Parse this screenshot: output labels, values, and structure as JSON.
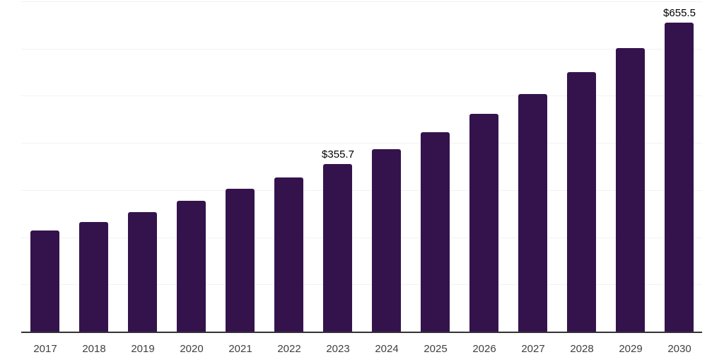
{
  "chart_data": {
    "type": "bar",
    "categories": [
      "2017",
      "2018",
      "2019",
      "2020",
      "2021",
      "2022",
      "2023",
      "2024",
      "2025",
      "2026",
      "2027",
      "2028",
      "2029",
      "2030"
    ],
    "values": [
      214,
      232,
      254,
      278,
      303,
      327,
      355.7,
      386,
      423,
      461,
      504,
      550,
      601,
      655.5
    ],
    "data_labels": [
      {
        "category": "2023",
        "text": "$355.7"
      },
      {
        "category": "2030",
        "text": "$655.5"
      }
    ],
    "title": "",
    "xlabel": "",
    "ylabel": "",
    "ylim": [
      0,
      700
    ],
    "grid_step": 100,
    "grid": true,
    "y_tick_labels_visible": false,
    "legend_position": "none",
    "colors": {
      "bar": "#34134d",
      "grid_line": "#f2f2f2",
      "axis_line": "#333333",
      "x_tick_label": "#404040",
      "data_label": "#000000",
      "background": "#ffffff"
    }
  }
}
